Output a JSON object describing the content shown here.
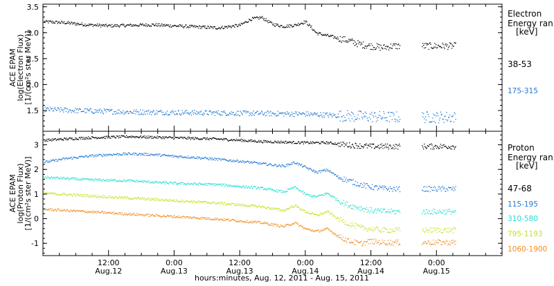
{
  "xlabel": "hours:minutes, Aug. 12, 2011 - Aug. 15, 2011",
  "x_ticks": [
    {
      "t": 12,
      "top": "12:00",
      "bottom": "Aug.12"
    },
    {
      "t": 24,
      "top": "0:00",
      "bottom": "Aug.13"
    },
    {
      "t": 36,
      "top": "12:00",
      "bottom": "Aug.13"
    },
    {
      "t": 48,
      "top": "0:00",
      "bottom": "Aug.14"
    },
    {
      "t": 60,
      "top": "12:00",
      "bottom": "Aug.14"
    },
    {
      "t": 72,
      "top": "0:00",
      "bottom": "Aug.15"
    }
  ],
  "chart_data": [
    {
      "type": "scatter",
      "instrument": "ACE EPAM",
      "ylabel": "log(Electron Flux)",
      "yunits": "[1/(cm²s ster MeV)]",
      "ylim": [
        1.1,
        3.55
      ],
      "yticks": [
        1.5,
        2.0,
        2.5,
        3.0,
        3.5
      ],
      "xlim": [
        0,
        84
      ],
      "x_units": "hours since Aug.12 00:00",
      "legend_title": [
        "Electron",
        "Energy ran",
        "[keV]"
      ],
      "gaps": [
        [
          65.5,
          66.5
        ],
        [
          67.0,
          69.0
        ]
      ],
      "series": [
        {
          "name": "38-53",
          "color": "#000000",
          "x": [
            0,
            4,
            8,
            12,
            16,
            20,
            24,
            28,
            32,
            36,
            38,
            40,
            42,
            44,
            46,
            48,
            50,
            52,
            54,
            56,
            58,
            60,
            62,
            64
          ],
          "y": [
            3.22,
            3.2,
            3.16,
            3.14,
            3.15,
            3.16,
            3.14,
            3.12,
            3.1,
            3.15,
            3.27,
            3.3,
            3.17,
            3.13,
            3.15,
            3.22,
            3.0,
            2.95,
            2.9,
            2.85,
            2.78,
            2.75,
            2.72,
            2.75
          ]
        },
        {
          "name": "175-315",
          "color": "#1f78d4",
          "x": [
            0,
            8,
            16,
            24,
            32,
            40,
            48,
            56,
            64
          ],
          "y": [
            1.53,
            1.5,
            1.48,
            1.47,
            1.46,
            1.45,
            1.44,
            1.4,
            1.38
          ]
        }
      ]
    },
    {
      "type": "scatter",
      "instrument": "ACE EPAM",
      "ylabel": "log(Proton Flux)",
      "yunits": "[1/(cm²s ster MeV)]",
      "ylim": [
        -1.5,
        3.55
      ],
      "yticks": [
        -1,
        0,
        1,
        2,
        3
      ],
      "xlim": [
        0,
        84
      ],
      "x_units": "hours since Aug.12 00:00",
      "legend_title": [
        "Proton",
        "Energy ran",
        "[keV]"
      ],
      "gaps": [
        [
          65.5,
          66.5
        ],
        [
          67.0,
          69.0
        ]
      ],
      "series": [
        {
          "name": "47-68",
          "color": "#000000",
          "x": [
            0,
            8,
            16,
            24,
            32,
            40,
            48,
            52,
            56,
            60,
            64
          ],
          "y": [
            3.2,
            3.3,
            3.35,
            3.3,
            3.25,
            3.15,
            3.1,
            3.1,
            3.0,
            2.95,
            2.95
          ]
        },
        {
          "name": "115-195",
          "color": "#1f78d4",
          "x": [
            0,
            4,
            8,
            12,
            16,
            20,
            24,
            28,
            32,
            36,
            40,
            44,
            46,
            48,
            50,
            52,
            54,
            56,
            58,
            60,
            62,
            64
          ],
          "y": [
            2.3,
            2.45,
            2.55,
            2.62,
            2.65,
            2.62,
            2.55,
            2.5,
            2.42,
            2.35,
            2.25,
            2.15,
            2.3,
            2.1,
            1.9,
            2.0,
            1.7,
            1.55,
            1.4,
            1.3,
            1.25,
            1.22
          ]
        },
        {
          "name": "310-580",
          "color": "#22ddd0",
          "x": [
            0,
            8,
            16,
            24,
            32,
            40,
            44,
            46,
            48,
            50,
            52,
            54,
            56,
            58,
            60,
            62,
            64
          ],
          "y": [
            1.7,
            1.6,
            1.55,
            1.45,
            1.4,
            1.25,
            1.1,
            1.3,
            1.0,
            0.9,
            1.05,
            0.75,
            0.55,
            0.45,
            0.35,
            0.32,
            0.3
          ]
        },
        {
          "name": "795-1193",
          "color": "#c8e020",
          "x": [
            0,
            8,
            16,
            24,
            32,
            40,
            44,
            46,
            48,
            50,
            52,
            54,
            56,
            58,
            60,
            62,
            64
          ],
          "y": [
            1.05,
            0.95,
            0.85,
            0.75,
            0.65,
            0.5,
            0.35,
            0.55,
            0.3,
            0.15,
            0.3,
            0.0,
            -0.2,
            -0.35,
            -0.4,
            -0.45,
            -0.45
          ]
        },
        {
          "name": "1060-1900",
          "color": "#f08c20",
          "x": [
            0,
            8,
            16,
            24,
            32,
            40,
            44,
            46,
            48,
            50,
            52,
            54,
            56,
            58,
            60,
            62,
            64
          ],
          "y": [
            0.4,
            0.3,
            0.2,
            0.1,
            0.0,
            -0.15,
            -0.3,
            -0.15,
            -0.4,
            -0.5,
            -0.4,
            -0.7,
            -0.9,
            -1.0,
            -0.9,
            -0.95,
            -0.95
          ]
        }
      ]
    }
  ]
}
